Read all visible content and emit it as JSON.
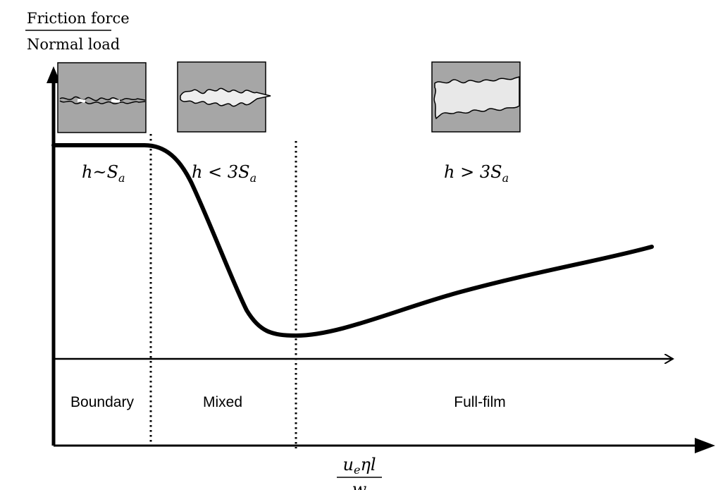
{
  "y_axis_label": {
    "numerator": "Friction force",
    "denominator": "Normal load"
  },
  "x_axis_label": {
    "numerator_u": "u",
    "numerator_sub": "e",
    "numerator_rest": "ηl",
    "denominator": "w"
  },
  "regimes": [
    {
      "name": "Boundary",
      "condition": {
        "lhs": "h",
        "op": "~",
        "rhs": "S",
        "sub": "a"
      }
    },
    {
      "name": "Mixed",
      "condition": {
        "lhs": "h",
        "op": " < ",
        "rhs": "3S",
        "sub": "a"
      }
    },
    {
      "name": "Full-film",
      "condition": {
        "lhs": "h",
        "op": " > ",
        "rhs": "3S",
        "sub": "a"
      }
    }
  ],
  "colors": {
    "line": "#000000",
    "box_fill": "#a6a6a6",
    "film_fill": "#e8e8e8"
  }
}
